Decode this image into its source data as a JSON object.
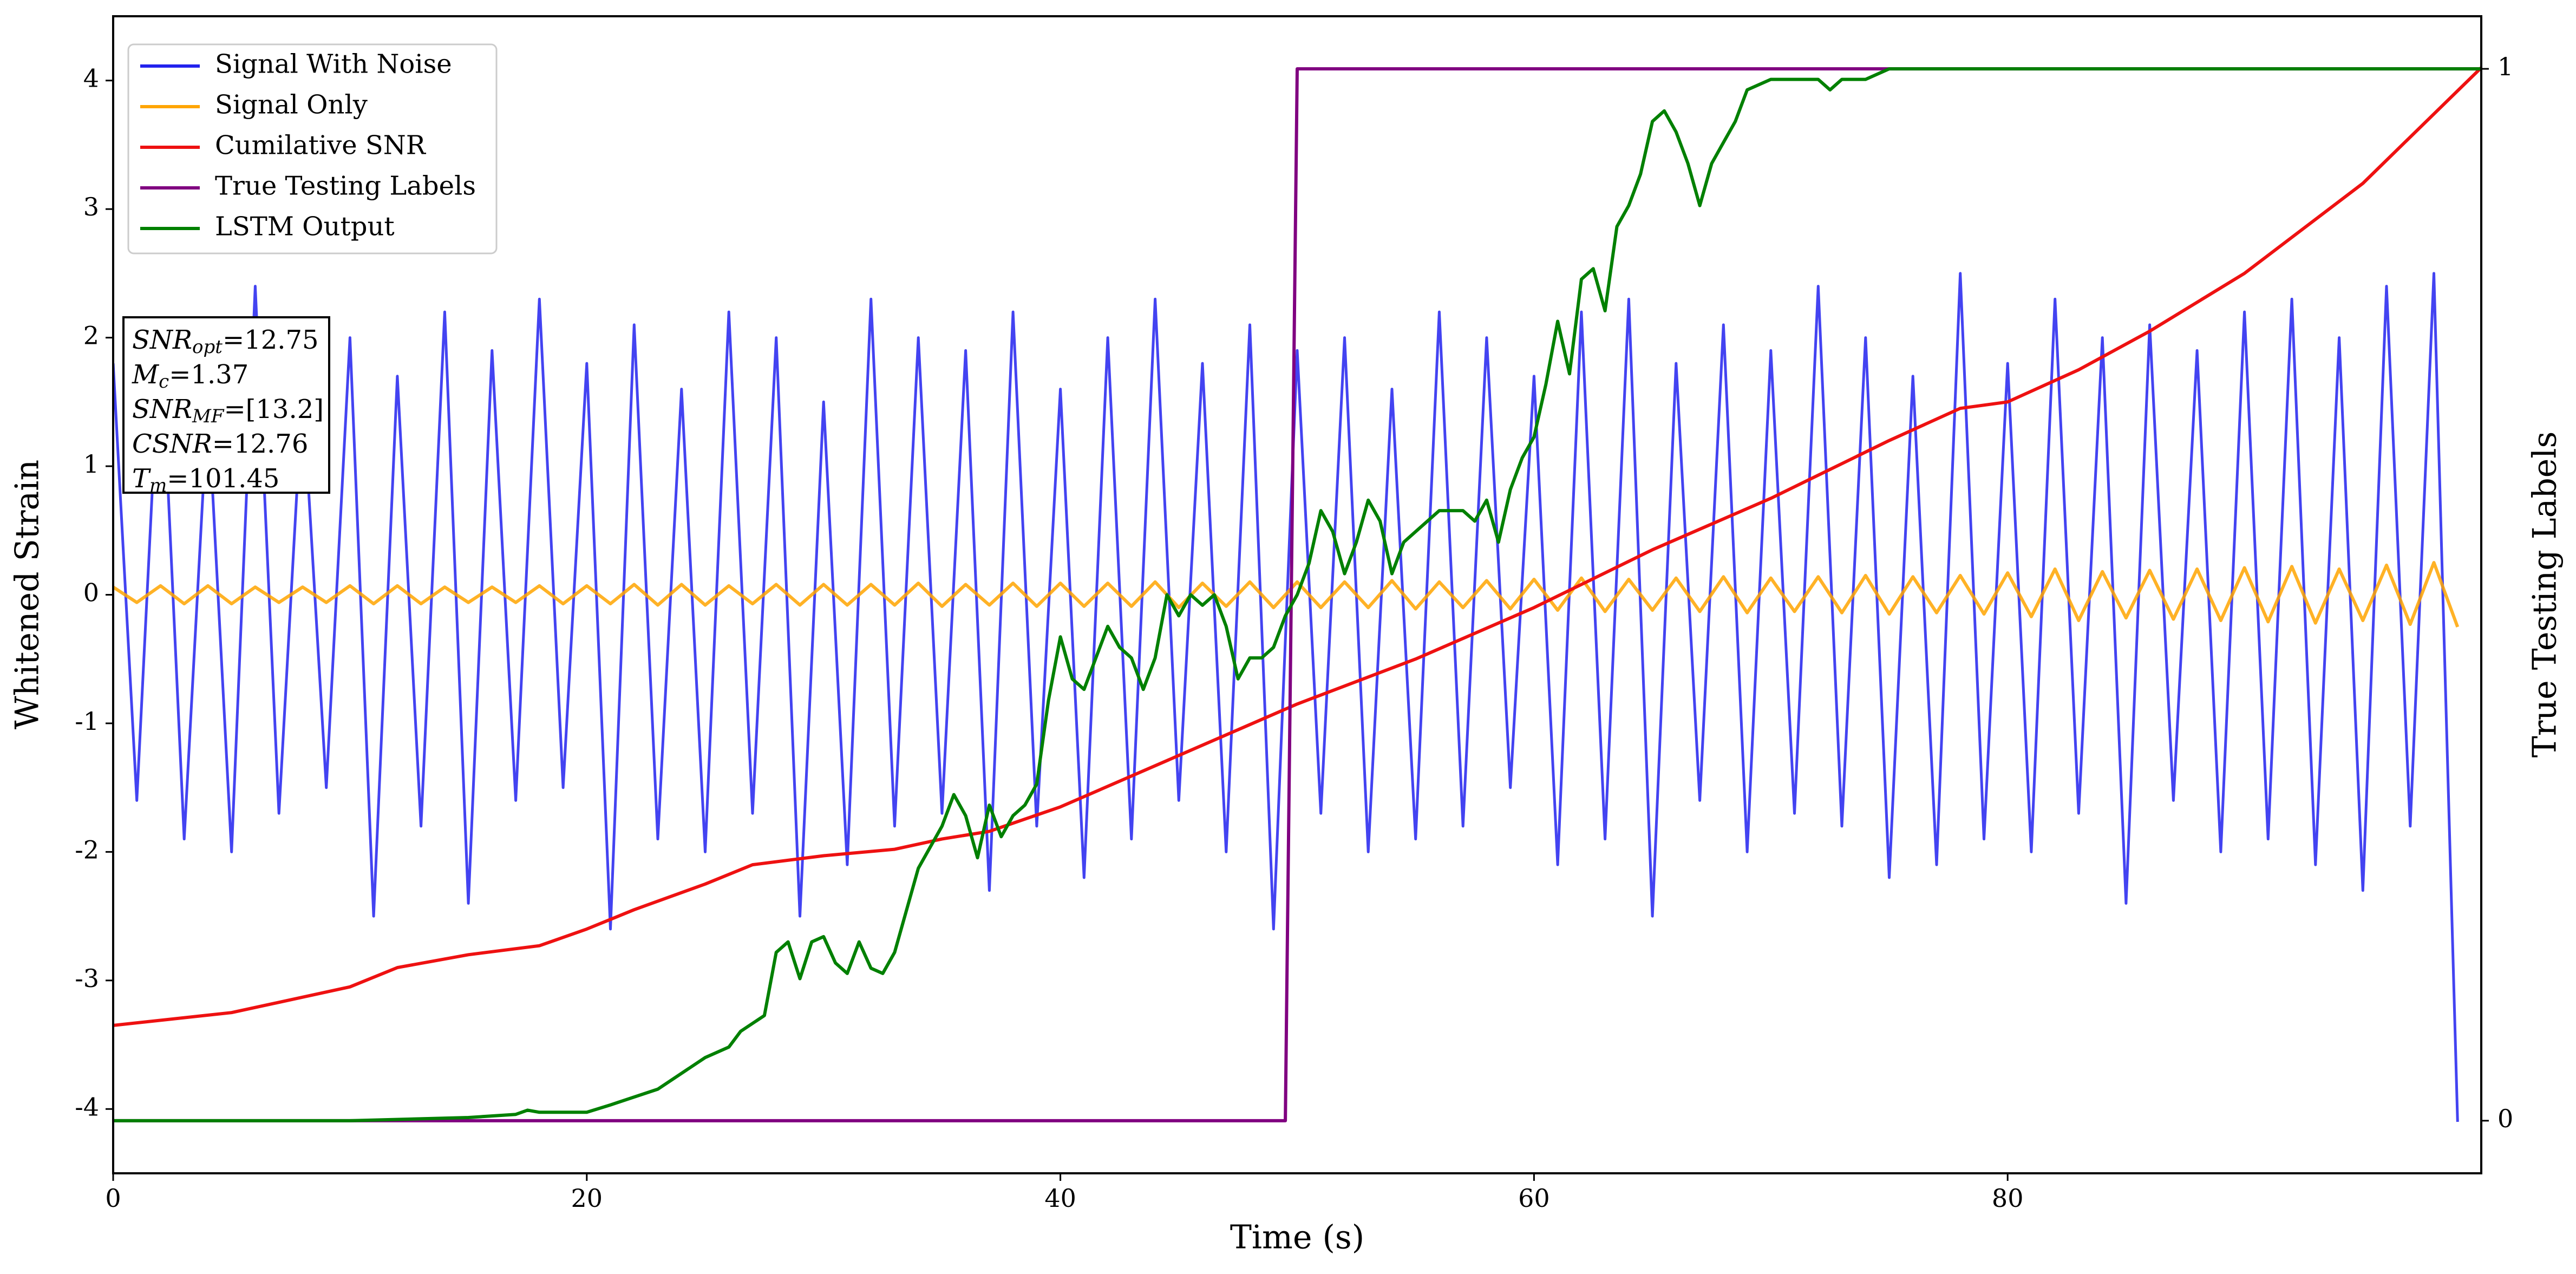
{
  "chart_data": {
    "type": "line",
    "xlabel": "Time (s)",
    "ylabel": "Whitened Strain",
    "y2label": "True Testing Labels",
    "xlim": [
      0,
      100
    ],
    "xticks": [
      0,
      20,
      40,
      60,
      80
    ],
    "ylim": [
      -4.5,
      4.5
    ],
    "yticks": [
      -4,
      -3,
      -2,
      -1,
      0,
      1,
      2,
      3,
      4
    ],
    "y2lim": [
      -0.05,
      1.05
    ],
    "y2ticks": [
      0,
      1
    ],
    "legend": "upper left",
    "annotations": [
      {
        "symbol": "SNR",
        "subscript": "opt",
        "text": "=12.75"
      },
      {
        "symbol": "M",
        "subscript": "c",
        "text": "=1.37"
      },
      {
        "symbol": "SNR",
        "subscript": "MF",
        "text": "=[13.2]"
      },
      {
        "symbol": "CSNR",
        "subscript": null,
        "text": "=12.76"
      },
      {
        "symbol": "T",
        "subscript": "m",
        "text": "=101.45"
      }
    ],
    "x": [
      0,
      1,
      2,
      3,
      4,
      5,
      6,
      7,
      8,
      9,
      10,
      11,
      12,
      13,
      14,
      15,
      16,
      17,
      18,
      19,
      20,
      21,
      22,
      23,
      24,
      25,
      26,
      27,
      28,
      29,
      30,
      31,
      32,
      33,
      34,
      35,
      36,
      37,
      38,
      39,
      40,
      41,
      42,
      43,
      44,
      45,
      46,
      47,
      48,
      49,
      50,
      51,
      52,
      53,
      54,
      55,
      56,
      57,
      58,
      59,
      60,
      61,
      62,
      63,
      64,
      65,
      66,
      67,
      68,
      69,
      70,
      71,
      72,
      73,
      74,
      75,
      76,
      77,
      78,
      79,
      80,
      81,
      82,
      83,
      84,
      85,
      86,
      87,
      88,
      89,
      90,
      91,
      92,
      93,
      94,
      95,
      96,
      97,
      98,
      99
    ],
    "series": [
      {
        "name": "Signal With Noise",
        "color": "#2222ee",
        "values": [
          1.8,
          -1.6,
          2.1,
          -1.9,
          1.5,
          -2.0,
          2.4,
          -1.7,
          1.6,
          -1.5,
          2.0,
          -2.5,
          1.7,
          -1.8,
          2.2,
          -2.4,
          1.9,
          -1.6,
          2.3,
          -1.5,
          1.8,
          -2.6,
          2.1,
          -1.9,
          1.6,
          -2.0,
          2.2,
          -1.7,
          2.0,
          -2.5,
          1.5,
          -2.1,
          2.3,
          -1.8,
          2.0,
          -1.7,
          1.9,
          -2.3,
          2.2,
          -1.8,
          1.6,
          -2.2,
          2.0,
          -1.9,
          2.3,
          -1.6,
          1.8,
          -2.0,
          2.1,
          -2.6,
          1.9,
          -1.7,
          2.0,
          -2.0,
          1.6,
          -1.9,
          2.2,
          -1.8,
          2.0,
          -1.5,
          1.7,
          -2.1,
          2.2,
          -1.9,
          2.3,
          -2.5,
          1.8,
          -1.6,
          2.1,
          -2.0,
          1.9,
          -1.7,
          2.4,
          -1.8,
          2.0,
          -2.2,
          1.7,
          -2.1,
          2.5,
          -1.9,
          1.8,
          -2.0,
          2.3,
          -1.7,
          2.0,
          -2.4,
          2.1,
          -1.6,
          1.9,
          -2.0,
          2.2,
          -1.9,
          2.3,
          -2.1,
          2.0,
          -2.3,
          2.4,
          -1.8,
          2.5,
          -4.1
        ]
      },
      {
        "name": "Signal Only",
        "color": "#ffa500",
        "values": [
          0.06,
          -0.06,
          0.07,
          -0.07,
          0.07,
          -0.07,
          0.06,
          -0.06,
          0.06,
          -0.06,
          0.07,
          -0.07,
          0.07,
          -0.07,
          0.06,
          -0.06,
          0.06,
          -0.06,
          0.07,
          -0.07,
          0.07,
          -0.07,
          0.08,
          -0.08,
          0.08,
          -0.08,
          0.07,
          -0.07,
          0.08,
          -0.08,
          0.08,
          -0.08,
          0.08,
          -0.08,
          0.09,
          -0.09,
          0.08,
          -0.08,
          0.09,
          -0.09,
          0.09,
          -0.09,
          0.09,
          -0.09,
          0.1,
          -0.1,
          0.09,
          -0.09,
          0.1,
          -0.1,
          0.1,
          -0.1,
          0.1,
          -0.1,
          0.11,
          -0.11,
          0.1,
          -0.1,
          0.11,
          -0.11,
          0.12,
          -0.12,
          0.13,
          -0.13,
          0.12,
          -0.12,
          0.13,
          -0.13,
          0.14,
          -0.14,
          0.13,
          -0.13,
          0.14,
          -0.14,
          0.15,
          -0.15,
          0.14,
          -0.14,
          0.15,
          -0.15,
          0.17,
          -0.17,
          0.2,
          -0.2,
          0.18,
          -0.18,
          0.19,
          -0.19,
          0.2,
          -0.2,
          0.21,
          -0.21,
          0.22,
          -0.22,
          0.2,
          -0.2,
          0.23,
          -0.23,
          0.25,
          -0.25
        ]
      },
      {
        "name": "Cumilative SNR",
        "color": "#ee1111",
        "x": [
          0,
          5,
          10,
          12,
          15,
          18,
          20,
          22,
          25,
          27,
          30,
          33,
          35,
          37,
          40,
          45,
          50,
          55,
          60,
          65,
          70,
          75,
          78,
          80,
          83,
          86,
          90,
          95,
          100
        ],
        "values": [
          -3.35,
          -3.25,
          -3.05,
          -2.9,
          -2.8,
          -2.73,
          -2.6,
          -2.45,
          -2.25,
          -2.1,
          -2.03,
          -1.98,
          -1.9,
          -1.84,
          -1.65,
          -1.25,
          -0.85,
          -0.5,
          -0.1,
          0.35,
          0.75,
          1.2,
          1.45,
          1.5,
          1.75,
          2.05,
          2.5,
          3.2,
          4.1
        ]
      },
      {
        "name": "True Testing Labels",
        "color": "#800080",
        "axis": "y2",
        "x": [
          0,
          49.5,
          50,
          100
        ],
        "values": [
          0,
          0,
          1,
          1
        ]
      },
      {
        "name": "LSTM Output",
        "color": "#008000",
        "axis": "y2",
        "x": [
          0,
          10,
          15,
          17,
          17.5,
          18,
          20,
          21,
          23,
          25,
          26,
          26.5,
          27.5,
          28,
          28.5,
          29,
          29.5,
          30,
          30.5,
          31,
          31.5,
          32,
          32.5,
          33,
          34,
          35,
          35.5,
          36,
          36.5,
          37,
          37.5,
          38,
          38.5,
          39,
          39.5,
          40,
          40.5,
          41,
          41.5,
          42,
          42.5,
          43,
          43.5,
          44,
          44.5,
          45,
          45.5,
          46,
          46.5,
          47,
          47.5,
          48,
          48.5,
          49,
          49.5,
          50,
          50.5,
          51,
          51.5,
          52,
          52.5,
          53,
          53.5,
          54,
          54.5,
          55,
          56,
          57,
          57.5,
          58,
          58.5,
          59,
          59.5,
          60,
          60.5,
          61,
          61.5,
          62,
          62.5,
          63,
          63.5,
          64,
          64.5,
          65,
          65.5,
          66,
          66.5,
          67,
          67.5,
          68,
          68.5,
          69,
          70,
          71,
          72,
          72.5,
          73,
          74,
          75,
          80,
          100
        ],
        "values": [
          0,
          0,
          0.003,
          0.006,
          0.01,
          0.008,
          0.008,
          0.015,
          0.03,
          0.06,
          0.07,
          0.085,
          0.1,
          0.16,
          0.17,
          0.135,
          0.17,
          0.175,
          0.15,
          0.14,
          0.17,
          0.145,
          0.14,
          0.16,
          0.24,
          0.28,
          0.31,
          0.29,
          0.25,
          0.3,
          0.27,
          0.29,
          0.3,
          0.32,
          0.4,
          0.46,
          0.42,
          0.41,
          0.44,
          0.47,
          0.45,
          0.44,
          0.41,
          0.44,
          0.5,
          0.48,
          0.5,
          0.49,
          0.5,
          0.47,
          0.42,
          0.44,
          0.44,
          0.45,
          0.48,
          0.5,
          0.53,
          0.58,
          0.56,
          0.52,
          0.55,
          0.59,
          0.57,
          0.52,
          0.55,
          0.56,
          0.58,
          0.58,
          0.57,
          0.59,
          0.55,
          0.6,
          0.63,
          0.65,
          0.7,
          0.76,
          0.71,
          0.8,
          0.81,
          0.77,
          0.85,
          0.87,
          0.9,
          0.95,
          0.96,
          0.94,
          0.91,
          0.87,
          0.91,
          0.93,
          0.95,
          0.98,
          0.99,
          0.99,
          0.99,
          0.98,
          0.99,
          0.99,
          1.0,
          1.0,
          1.0
        ]
      }
    ]
  }
}
